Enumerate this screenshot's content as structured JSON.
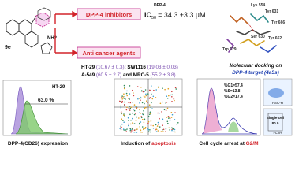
{
  "compound": {
    "label": "9e",
    "group": "NH2"
  },
  "dpp4": {
    "title": "DPP-4 inhibitors",
    "ic_symbol": "IC",
    "ic_sub": "50",
    "ic_sup": "DPP-4",
    "ic_value": "= 34.3 ±3.3 µM"
  },
  "anticancer": {
    "title": "Anti cancer agents",
    "line1": [
      "HT-29",
      "(10.67 ± 0.3)",
      "; SW1116",
      "(19.03 ± 0.03)"
    ],
    "line2": [
      "A-549",
      "(60.5 ± 2.7)",
      "and MRC-5",
      "(55.2 ± 3.8)"
    ]
  },
  "docking": {
    "residues": [
      "Lys 554",
      "Tyr 631",
      "Tyr 666",
      "Ser 630",
      "Trp 629",
      "Tyr 662"
    ],
    "caption_line1": "Molecular docking on",
    "caption_target": "DPP-4 target",
    "caption_code": "(4a5s)"
  },
  "panels": [
    {
      "caption": "DPP-4(CD26) expression",
      "cell_line": "HT-29",
      "gate": "63.0 %"
    },
    {
      "caption_prefix": "Induction of",
      "caption_key": "apoptosis"
    },
    {
      "caption_prefix": "Cell cycle arrest at",
      "caption_key": "G2/M",
      "stats": [
        "%G1=57.4",
        "%S=13.8",
        "%G2=17.4"
      ],
      "inset1": "FSC-H",
      "inset2_title": "Single cell",
      "inset2_value": "80.0",
      "inset2_axis": "FL2H"
    }
  ]
}
